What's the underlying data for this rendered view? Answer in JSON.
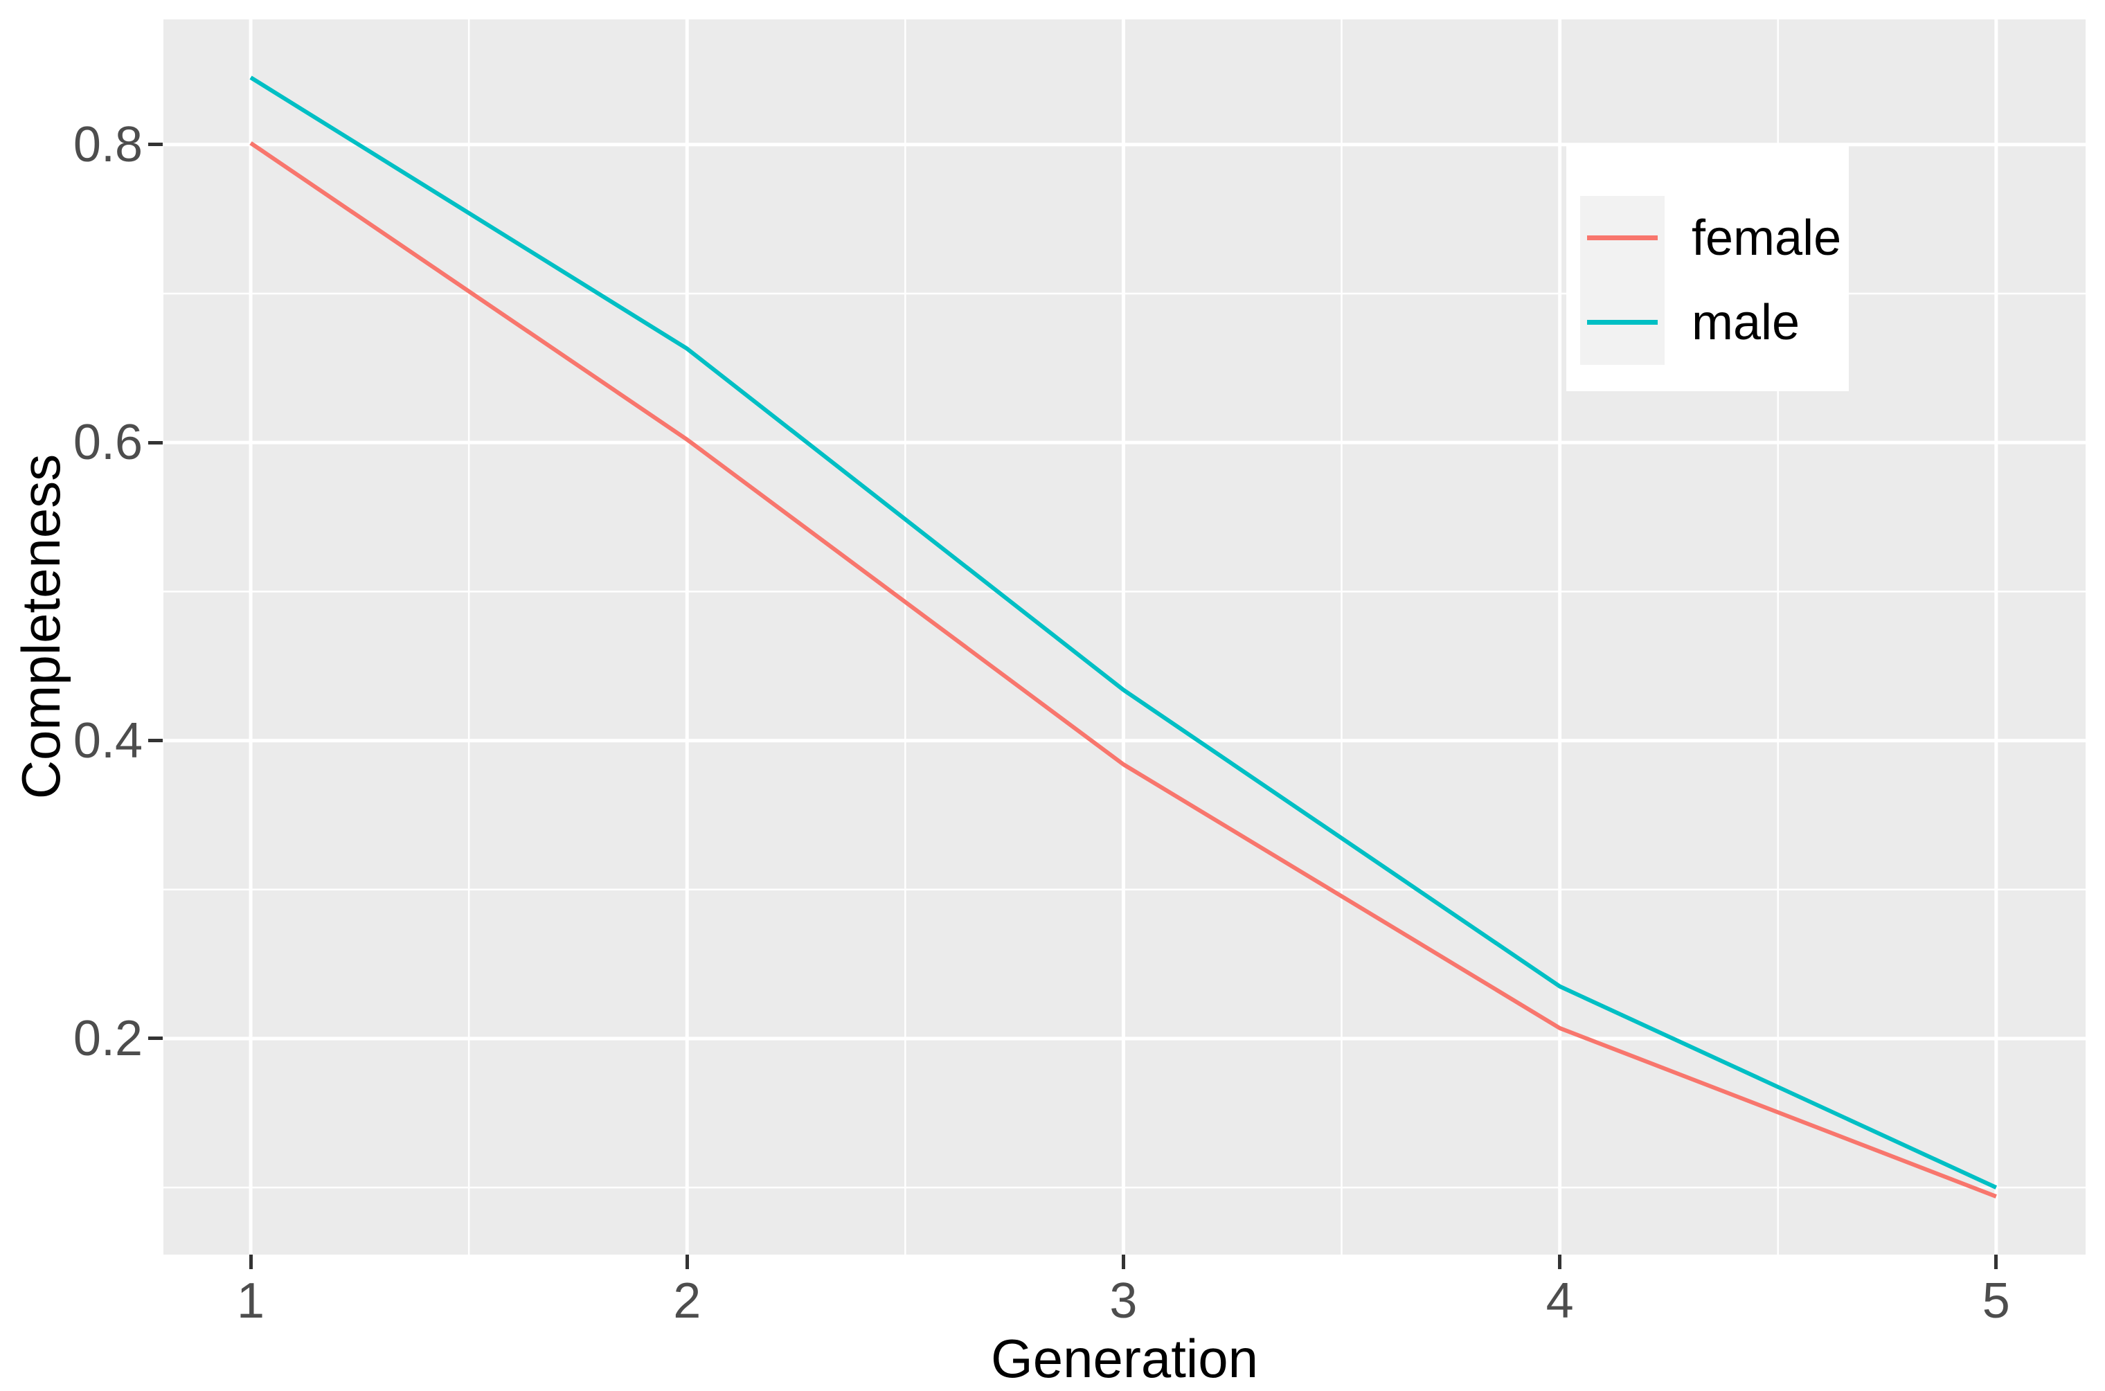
{
  "chart_data": {
    "type": "line",
    "title": "",
    "xlabel": "Generation",
    "ylabel": "Completeness",
    "x": [
      1,
      2,
      3,
      4,
      5
    ],
    "series": [
      {
        "name": "female",
        "color": "#F8766D",
        "values": [
          0.801,
          0.602,
          0.384,
          0.207,
          0.094
        ]
      },
      {
        "name": "male",
        "color": "#00BFC4",
        "values": [
          0.845,
          0.663,
          0.434,
          0.235,
          0.1
        ]
      }
    ],
    "x_ticks": [
      {
        "label": "1",
        "value": 1
      },
      {
        "label": "2",
        "value": 2
      },
      {
        "label": "3",
        "value": 3
      },
      {
        "label": "4",
        "value": 4
      },
      {
        "label": "5",
        "value": 5
      }
    ],
    "y_ticks": [
      {
        "label": "0.8",
        "value": 0.8
      },
      {
        "label": "0.6",
        "value": 0.6
      },
      {
        "label": "0.4",
        "value": 0.4
      },
      {
        "label": "0.2",
        "value": 0.2
      }
    ],
    "x_minor": [
      1.5,
      2.5,
      3.5,
      4.5
    ],
    "y_minor": [
      0.1,
      0.3,
      0.5,
      0.7
    ],
    "xlim": [
      0.8,
      5.205
    ],
    "ylim": [
      0.055,
      0.884
    ],
    "grid": "white major and minor gridlines on grey panel",
    "legend_position": "inside top-right",
    "legend_entries": [
      "female",
      "male"
    ]
  },
  "style": {
    "panel_bg": "#EBEBEB",
    "grid_color": "#FFFFFF",
    "tick_color": "#333333",
    "tick_label_color": "#4D4D4D",
    "axis_title_color": "#000000",
    "series_female": "#F8766D",
    "series_male": "#00BFC4",
    "legend_bg": "#FFFFFF",
    "legend_key_bg": "#F2F2F2"
  }
}
